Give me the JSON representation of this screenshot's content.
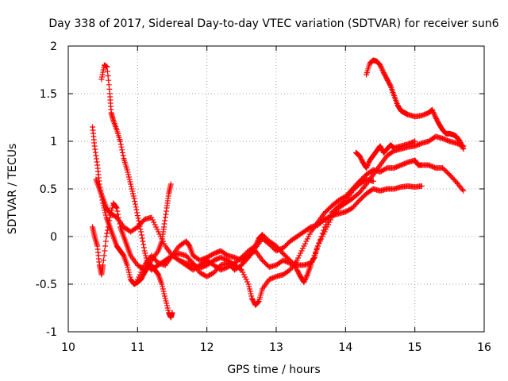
{
  "chart_data": {
    "type": "scatter",
    "title": "Day 338 of 2017, Sidereal Day-to-day VTEC variation (SDTVAR) for receiver sun6",
    "xlabel": "GPS time / hours",
    "ylabel": "SDTVAR / TECUs",
    "xlim": [
      10,
      16
    ],
    "ylim": [
      -1,
      2
    ],
    "x_ticks": [
      10,
      11,
      12,
      13,
      14,
      15,
      16
    ],
    "y_ticks": [
      -1,
      -0.5,
      0,
      0.5,
      1,
      1.5,
      2
    ],
    "x_tick_labels": [
      "10",
      "11",
      "12",
      "13",
      "14",
      "15",
      "16"
    ],
    "y_tick_labels": [
      "-1",
      "-0.5",
      "0",
      "0.5",
      "1",
      "1.5",
      "2"
    ],
    "grid": true,
    "marker": "+",
    "marker_color": "#ff0000",
    "series": [
      {
        "name": "trace-1",
        "points": [
          [
            10.48,
            1.65
          ],
          [
            10.52,
            1.8
          ],
          [
            10.56,
            1.78
          ],
          [
            10.6,
            1.5
          ],
          [
            10.62,
            1.3
          ],
          [
            10.65,
            1.22
          ],
          [
            10.7,
            1.12
          ],
          [
            10.75,
            1.0
          ],
          [
            10.8,
            0.82
          ],
          [
            10.85,
            0.7
          ],
          [
            10.9,
            0.55
          ],
          [
            10.95,
            0.4
          ],
          [
            11.0,
            0.22
          ],
          [
            11.05,
            0.05
          ],
          [
            11.1,
            -0.15
          ],
          [
            11.15,
            -0.3
          ],
          [
            11.2,
            -0.35
          ],
          [
            11.3,
            -0.3
          ],
          [
            11.4,
            -0.25
          ],
          [
            11.5,
            -0.2
          ],
          [
            11.6,
            -0.18
          ],
          [
            11.7,
            -0.2
          ],
          [
            11.8,
            -0.28
          ],
          [
            11.9,
            -0.38
          ],
          [
            12.0,
            -0.42
          ],
          [
            12.1,
            -0.38
          ],
          [
            12.2,
            -0.3
          ],
          [
            12.3,
            -0.28
          ],
          [
            12.4,
            -0.35
          ],
          [
            12.5,
            -0.3
          ],
          [
            12.6,
            -0.22
          ],
          [
            12.7,
            -0.12
          ],
          [
            12.8,
            -0.02
          ],
          [
            12.9,
            -0.08
          ],
          [
            13.0,
            -0.15
          ],
          [
            13.1,
            -0.12
          ],
          [
            13.2,
            -0.05
          ],
          [
            13.3,
            0.0
          ],
          [
            13.4,
            0.05
          ],
          [
            13.5,
            0.1
          ],
          [
            13.6,
            0.12
          ],
          [
            13.7,
            0.18
          ],
          [
            13.8,
            0.22
          ],
          [
            13.9,
            0.24
          ],
          [
            14.0,
            0.26
          ],
          [
            14.1,
            0.3
          ],
          [
            14.2,
            0.38
          ],
          [
            14.3,
            0.45
          ],
          [
            14.4,
            0.5
          ],
          [
            14.5,
            0.48
          ],
          [
            14.6,
            0.5
          ],
          [
            14.7,
            0.5
          ],
          [
            14.8,
            0.52
          ],
          [
            14.9,
            0.53
          ],
          [
            15.0,
            0.52
          ],
          [
            15.1,
            0.53
          ]
        ]
      },
      {
        "name": "trace-2",
        "points": [
          [
            10.35,
            1.15
          ],
          [
            10.38,
            0.95
          ],
          [
            10.42,
            0.75
          ],
          [
            10.45,
            0.55
          ],
          [
            10.5,
            0.35
          ],
          [
            10.55,
            0.2
          ],
          [
            10.6,
            0.1
          ],
          [
            10.65,
            0.0
          ],
          [
            10.7,
            -0.1
          ],
          [
            10.75,
            -0.15
          ],
          [
            10.8,
            -0.2
          ],
          [
            10.85,
            -0.3
          ],
          [
            10.9,
            -0.45
          ],
          [
            10.95,
            -0.5
          ],
          [
            11.0,
            -0.48
          ],
          [
            11.05,
            -0.45
          ],
          [
            11.1,
            -0.38
          ],
          [
            11.15,
            -0.32
          ],
          [
            11.2,
            -0.3
          ],
          [
            11.25,
            -0.35
          ],
          [
            11.3,
            -0.4
          ],
          [
            11.35,
            -0.5
          ],
          [
            11.4,
            -0.65
          ],
          [
            11.45,
            -0.8
          ],
          [
            11.48,
            -0.85
          ],
          [
            11.5,
            -0.8
          ]
        ]
      },
      {
        "name": "trace-3",
        "points": [
          [
            10.35,
            0.1
          ],
          [
            10.38,
            0.0
          ],
          [
            10.42,
            -0.1
          ],
          [
            10.45,
            -0.3
          ],
          [
            10.48,
            -0.4
          ],
          [
            10.5,
            -0.3
          ],
          [
            10.55,
            0.0
          ],
          [
            10.6,
            0.2
          ],
          [
            10.65,
            0.35
          ],
          [
            10.7,
            0.3
          ],
          [
            10.75,
            0.1
          ],
          [
            10.8,
            0.0
          ],
          [
            10.85,
            -0.1
          ],
          [
            10.9,
            -0.2
          ],
          [
            11.0,
            -0.3
          ],
          [
            11.1,
            -0.35
          ],
          [
            11.2,
            -0.25
          ],
          [
            11.3,
            -0.15
          ],
          [
            11.35,
            -0.05
          ],
          [
            11.38,
            0.1
          ],
          [
            11.42,
            0.3
          ],
          [
            11.45,
            0.45
          ],
          [
            11.48,
            0.55
          ]
        ]
      },
      {
        "name": "trace-4",
        "points": [
          [
            10.4,
            0.6
          ],
          [
            10.45,
            0.5
          ],
          [
            10.5,
            0.4
          ],
          [
            10.55,
            0.3
          ],
          [
            10.6,
            0.25
          ],
          [
            10.7,
            0.2
          ],
          [
            10.8,
            0.1
          ],
          [
            10.9,
            0.05
          ],
          [
            11.0,
            0.1
          ],
          [
            11.1,
            0.18
          ],
          [
            11.2,
            0.2
          ],
          [
            11.3,
            0.05
          ],
          [
            11.4,
            -0.1
          ],
          [
            11.5,
            -0.2
          ],
          [
            11.6,
            -0.25
          ],
          [
            11.7,
            -0.28
          ],
          [
            11.8,
            -0.3
          ],
          [
            11.9,
            -0.33
          ],
          [
            12.0,
            -0.3
          ],
          [
            12.1,
            -0.25
          ],
          [
            12.2,
            -0.22
          ],
          [
            12.3,
            -0.25
          ],
          [
            12.4,
            -0.3
          ],
          [
            12.5,
            -0.35
          ],
          [
            12.6,
            -0.5
          ],
          [
            12.65,
            -0.65
          ],
          [
            12.7,
            -0.72
          ],
          [
            12.75,
            -0.68
          ],
          [
            12.8,
            -0.55
          ],
          [
            12.9,
            -0.45
          ],
          [
            13.0,
            -0.42
          ],
          [
            13.1,
            -0.4
          ],
          [
            13.2,
            -0.35
          ],
          [
            13.3,
            -0.25
          ],
          [
            13.4,
            -0.1
          ],
          [
            13.5,
            0.05
          ],
          [
            13.6,
            0.15
          ],
          [
            13.7,
            0.25
          ],
          [
            13.8,
            0.32
          ],
          [
            13.9,
            0.38
          ],
          [
            14.0,
            0.42
          ],
          [
            14.1,
            0.5
          ],
          [
            14.2,
            0.58
          ],
          [
            14.3,
            0.65
          ],
          [
            14.4,
            0.7
          ],
          [
            14.5,
            0.68
          ],
          [
            14.6,
            0.72
          ],
          [
            14.7,
            0.72
          ],
          [
            14.8,
            0.75
          ],
          [
            14.9,
            0.78
          ],
          [
            15.0,
            0.8
          ],
          [
            15.05,
            0.75
          ],
          [
            15.1,
            0.75
          ],
          [
            15.2,
            0.75
          ],
          [
            15.3,
            0.72
          ],
          [
            15.4,
            0.72
          ],
          [
            15.5,
            0.65
          ],
          [
            15.6,
            0.57
          ],
          [
            15.7,
            0.48
          ]
        ]
      },
      {
        "name": "trace-5",
        "points": [
          [
            11.0,
            -0.45
          ],
          [
            11.1,
            -0.3
          ],
          [
            11.2,
            -0.2
          ],
          [
            11.3,
            -0.28
          ],
          [
            11.4,
            -0.3
          ],
          [
            11.5,
            -0.2
          ],
          [
            11.6,
            -0.1
          ],
          [
            11.7,
            -0.05
          ],
          [
            11.75,
            -0.1
          ],
          [
            11.8,
            -0.2
          ],
          [
            11.9,
            -0.25
          ],
          [
            12.0,
            -0.22
          ],
          [
            12.1,
            -0.18
          ],
          [
            12.2,
            -0.15
          ],
          [
            12.3,
            -0.2
          ],
          [
            12.4,
            -0.22
          ],
          [
            12.5,
            -0.25
          ],
          [
            12.6,
            -0.2
          ],
          [
            12.7,
            -0.15
          ],
          [
            12.8,
            -0.25
          ],
          [
            12.9,
            -0.32
          ],
          [
            13.0,
            -0.3
          ],
          [
            13.1,
            -0.25
          ],
          [
            13.2,
            -0.28
          ],
          [
            13.3,
            -0.3
          ],
          [
            13.4,
            -0.3
          ],
          [
            13.5,
            -0.28
          ],
          [
            13.55,
            -0.22
          ],
          [
            13.6,
            -0.1
          ],
          [
            13.7,
            0.05
          ],
          [
            13.8,
            0.2
          ],
          [
            13.9,
            0.3
          ],
          [
            14.0,
            0.35
          ],
          [
            14.1,
            0.4
          ],
          [
            14.2,
            0.46
          ],
          [
            14.3,
            0.55
          ],
          [
            14.4,
            0.65
          ],
          [
            14.5,
            0.75
          ],
          [
            14.6,
            0.85
          ],
          [
            14.7,
            0.9
          ],
          [
            14.8,
            0.92
          ],
          [
            14.9,
            0.94
          ],
          [
            15.0,
            0.95
          ],
          [
            15.1,
            0.98
          ],
          [
            15.2,
            1.0
          ],
          [
            15.3,
            1.05
          ],
          [
            15.4,
            1.03
          ],
          [
            15.5,
            1.0
          ],
          [
            15.6,
            0.98
          ],
          [
            15.7,
            0.95
          ]
        ]
      },
      {
        "name": "trace-6",
        "points": [
          [
            11.6,
            -0.25
          ],
          [
            11.7,
            -0.3
          ],
          [
            11.8,
            -0.35
          ],
          [
            11.9,
            -0.3
          ],
          [
            12.0,
            -0.25
          ],
          [
            12.1,
            -0.3
          ],
          [
            12.2,
            -0.35
          ],
          [
            12.3,
            -0.32
          ],
          [
            12.4,
            -0.28
          ],
          [
            12.5,
            -0.22
          ],
          [
            12.6,
            -0.15
          ],
          [
            12.7,
            -0.1
          ],
          [
            12.75,
            -0.02
          ],
          [
            12.8,
            0.02
          ],
          [
            12.9,
            -0.05
          ],
          [
            13.0,
            -0.1
          ],
          [
            13.1,
            -0.18
          ],
          [
            13.2,
            -0.25
          ],
          [
            13.3,
            -0.35
          ],
          [
            13.35,
            -0.42
          ],
          [
            13.4,
            -0.48
          ],
          [
            13.45,
            -0.4
          ],
          [
            13.5,
            -0.3
          ],
          [
            13.6,
            -0.1
          ],
          [
            13.7,
            0.1
          ],
          [
            13.8,
            0.25
          ],
          [
            13.9,
            0.32
          ],
          [
            14.0,
            0.38
          ],
          [
            14.1,
            0.48
          ],
          [
            14.2,
            0.55
          ],
          [
            14.3,
            0.6
          ],
          [
            14.4,
            0.58
          ]
        ]
      },
      {
        "name": "trace-7",
        "points": [
          [
            14.15,
            0.88
          ],
          [
            14.2,
            0.85
          ],
          [
            14.25,
            0.78
          ],
          [
            14.3,
            0.72
          ],
          [
            14.35,
            0.8
          ],
          [
            14.4,
            0.85
          ],
          [
            14.45,
            0.9
          ],
          [
            14.5,
            0.95
          ],
          [
            14.55,
            0.88
          ],
          [
            14.6,
            0.92
          ],
          [
            14.65,
            0.96
          ],
          [
            14.7,
            0.93
          ],
          [
            14.8,
            0.95
          ],
          [
            14.9,
            0.97
          ],
          [
            15.0,
            1.0
          ]
        ]
      },
      {
        "name": "trace-8",
        "points": [
          [
            14.3,
            1.7
          ],
          [
            14.35,
            1.82
          ],
          [
            14.4,
            1.85
          ],
          [
            14.45,
            1.84
          ],
          [
            14.5,
            1.8
          ],
          [
            14.55,
            1.72
          ],
          [
            14.6,
            1.65
          ],
          [
            14.65,
            1.58
          ],
          [
            14.7,
            1.48
          ],
          [
            14.75,
            1.38
          ],
          [
            14.8,
            1.32
          ],
          [
            14.85,
            1.3
          ],
          [
            14.9,
            1.28
          ],
          [
            15.0,
            1.26
          ],
          [
            15.1,
            1.27
          ],
          [
            15.2,
            1.3
          ],
          [
            15.25,
            1.33
          ],
          [
            15.3,
            1.25
          ],
          [
            15.35,
            1.18
          ],
          [
            15.4,
            1.12
          ],
          [
            15.45,
            1.08
          ],
          [
            15.5,
            1.08
          ],
          [
            15.55,
            1.07
          ],
          [
            15.6,
            1.05
          ],
          [
            15.65,
            1.0
          ],
          [
            15.7,
            0.92
          ]
        ]
      }
    ]
  }
}
